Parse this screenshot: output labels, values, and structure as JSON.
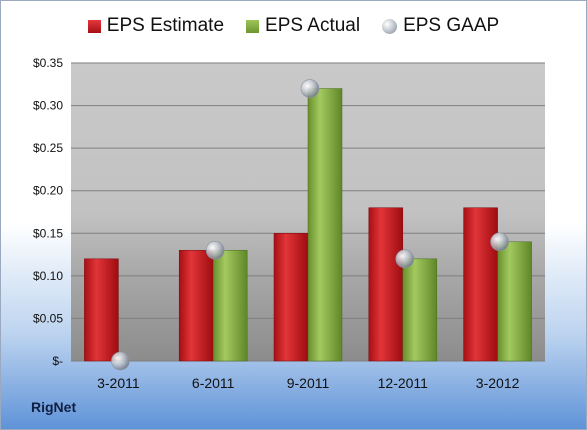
{
  "chart_data": {
    "type": "bar",
    "categories": [
      "3-2011",
      "6-2011",
      "9-2011",
      "12-2011",
      "3-2012"
    ],
    "series": [
      {
        "name": "EPS Estimate",
        "values": [
          0.12,
          0.13,
          0.15,
          0.18,
          0.18
        ],
        "color": "#c8181d"
      },
      {
        "name": "EPS Actual",
        "values": [
          null,
          0.13,
          0.32,
          0.12,
          0.14
        ],
        "color": "#86ad41"
      },
      {
        "name": "EPS GAAP",
        "values": [
          0.0,
          0.13,
          0.32,
          0.12,
          0.14
        ],
        "color": "#b4bcc6",
        "marker": "sphere"
      }
    ],
    "ylim": [
      0,
      0.35
    ],
    "yticks": [
      0,
      0.05,
      0.1,
      0.15,
      0.2,
      0.25,
      0.3,
      0.35
    ],
    "ytick_labels": [
      "$-",
      "$0.05",
      "$0.10",
      "$0.15",
      "$0.20",
      "$0.25",
      "$0.30",
      "$0.35"
    ],
    "grid": true,
    "legend_position": "top"
  },
  "company": "RigNet"
}
